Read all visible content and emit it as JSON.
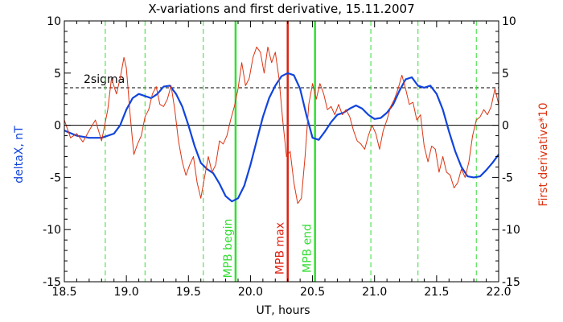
{
  "chart_data": {
    "type": "line",
    "title": "X-variations and first derivative, 15.11.2007",
    "xlabel": "UT, hours",
    "ylabel_left": "deltaX, nT",
    "ylabel_right": "First derivative*10",
    "xlim": [
      18.5,
      22.0
    ],
    "ylim": [
      -15,
      10
    ],
    "x_ticks": [
      "18.5",
      "19.0",
      "19.5",
      "20.0",
      "20.5",
      "21.0",
      "21.5",
      "22.0"
    ],
    "x_tick_values": [
      18.5,
      19.0,
      19.5,
      20.0,
      20.5,
      21.0,
      21.5,
      22.0
    ],
    "y_ticks": [
      "-15",
      "-10",
      "-5",
      "0",
      "5",
      "10"
    ],
    "y_tick_values": [
      -15,
      -10,
      -5,
      0,
      5,
      10
    ],
    "threshold": {
      "label": "2sigma",
      "value": 3.6
    },
    "zero_line": 0,
    "green_dashed_lines": [
      18.83,
      19.15,
      19.62,
      20.97,
      21.35,
      21.82
    ],
    "event_lines": [
      {
        "label": "MPB begin",
        "x": 19.88,
        "color": "#33dd33"
      },
      {
        "label": "MPB max",
        "x": 20.3,
        "color": "#dd2211"
      },
      {
        "label": "MPB end",
        "x": 20.52,
        "color": "#33dd33"
      }
    ],
    "series": [
      {
        "name": "deltaX, nT",
        "color": "#1144dd",
        "x": [
          18.5,
          18.6,
          18.7,
          18.8,
          18.9,
          18.95,
          19.0,
          19.05,
          19.1,
          19.15,
          19.2,
          19.25,
          19.3,
          19.35,
          19.4,
          19.45,
          19.5,
          19.55,
          19.6,
          19.65,
          19.7,
          19.75,
          19.8,
          19.85,
          19.9,
          19.95,
          20.0,
          20.05,
          20.1,
          20.15,
          20.2,
          20.25,
          20.3,
          20.35,
          20.4,
          20.45,
          20.5,
          20.55,
          20.6,
          20.65,
          20.7,
          20.75,
          20.8,
          20.85,
          20.9,
          20.95,
          21.0,
          21.05,
          21.1,
          21.15,
          21.2,
          21.25,
          21.3,
          21.35,
          21.4,
          21.45,
          21.5,
          21.55,
          21.6,
          21.65,
          21.7,
          21.75,
          21.8,
          21.85,
          21.9,
          21.95,
          22.0
        ],
        "y": [
          -0.5,
          -1.0,
          -1.2,
          -1.2,
          -0.8,
          0.0,
          1.5,
          2.6,
          3.0,
          2.8,
          2.6,
          3.0,
          3.7,
          3.8,
          3.0,
          1.8,
          0.0,
          -2.0,
          -3.6,
          -4.2,
          -4.6,
          -5.6,
          -6.8,
          -7.3,
          -7.0,
          -5.8,
          -3.8,
          -1.5,
          0.8,
          2.6,
          3.8,
          4.7,
          5.0,
          4.8,
          3.5,
          1.0,
          -1.2,
          -1.4,
          -0.6,
          0.3,
          1.0,
          1.2,
          1.6,
          1.9,
          1.6,
          1.0,
          0.6,
          0.7,
          1.2,
          2.0,
          3.3,
          4.4,
          4.6,
          3.8,
          3.6,
          3.8,
          3.0,
          1.5,
          -0.6,
          -2.5,
          -4.0,
          -4.9,
          -5.0,
          -4.9,
          -4.3,
          -3.6,
          -2.8
        ]
      },
      {
        "name": "First derivative*10",
        "color": "#dd3311",
        "x": [
          18.5,
          18.55,
          18.6,
          18.65,
          18.7,
          18.75,
          18.8,
          18.85,
          18.88,
          18.92,
          18.95,
          18.98,
          19.0,
          19.03,
          19.06,
          19.09,
          19.12,
          19.15,
          19.18,
          19.21,
          19.24,
          19.27,
          19.3,
          19.33,
          19.36,
          19.39,
          19.42,
          19.45,
          19.48,
          19.51,
          19.54,
          19.57,
          19.6,
          19.63,
          19.66,
          19.69,
          19.72,
          19.75,
          19.78,
          19.81,
          19.84,
          19.87,
          19.9,
          19.93,
          19.96,
          19.99,
          20.02,
          20.05,
          20.08,
          20.11,
          20.14,
          20.17,
          20.2,
          20.23,
          20.26,
          20.29,
          20.32,
          20.35,
          20.38,
          20.41,
          20.44,
          20.47,
          20.5,
          20.53,
          20.56,
          20.59,
          20.62,
          20.65,
          20.68,
          20.71,
          20.74,
          20.77,
          20.8,
          20.83,
          20.86,
          20.89,
          20.92,
          20.95,
          20.98,
          21.01,
          21.04,
          21.07,
          21.1,
          21.13,
          21.16,
          21.19,
          21.22,
          21.25,
          21.28,
          21.31,
          21.34,
          21.37,
          21.4,
          21.43,
          21.46,
          21.49,
          21.52,
          21.55,
          21.58,
          21.61,
          21.64,
          21.67,
          21.7,
          21.73,
          21.76,
          21.79,
          21.82,
          21.85,
          21.88,
          21.91,
          21.94,
          21.97,
          22.0
        ],
        "y": [
          0.5,
          -1.2,
          -0.8,
          -1.6,
          -0.5,
          0.5,
          -1.5,
          1.5,
          4.5,
          3.0,
          4.5,
          6.5,
          5.5,
          1.0,
          -2.8,
          -1.8,
          -1.0,
          0.8,
          1.5,
          3.0,
          3.7,
          2.0,
          1.8,
          2.5,
          3.8,
          1.5,
          -1.5,
          -3.5,
          -4.8,
          -3.8,
          -3.0,
          -5.5,
          -7.0,
          -5.0,
          -3.0,
          -4.5,
          -3.8,
          -1.5,
          -1.8,
          -1.0,
          0.5,
          1.8,
          3.5,
          6.0,
          3.8,
          4.5,
          6.5,
          7.5,
          7.0,
          5.0,
          7.5,
          6.0,
          7.0,
          4.5,
          0.5,
          -3.0,
          -2.5,
          -5.5,
          -7.5,
          -7.0,
          -3.0,
          2.0,
          4.0,
          2.5,
          4.0,
          3.0,
          1.5,
          1.8,
          1.0,
          2.0,
          1.0,
          1.5,
          0.8,
          -0.5,
          -1.5,
          -1.8,
          -2.3,
          -1.0,
          0.0,
          -0.8,
          -2.3,
          -0.5,
          0.5,
          1.8,
          2.5,
          3.5,
          4.8,
          3.5,
          2.0,
          2.2,
          0.5,
          1.0,
          -2.0,
          -3.5,
          -2.0,
          -2.3,
          -4.5,
          -3.0,
          -4.5,
          -4.8,
          -6.0,
          -5.5,
          -4.2,
          -5.0,
          -3.5,
          -1.0,
          0.5,
          0.8,
          1.5,
          1.0,
          1.8,
          3.5,
          2.0
        ]
      }
    ],
    "grid": false,
    "legend": "none"
  }
}
